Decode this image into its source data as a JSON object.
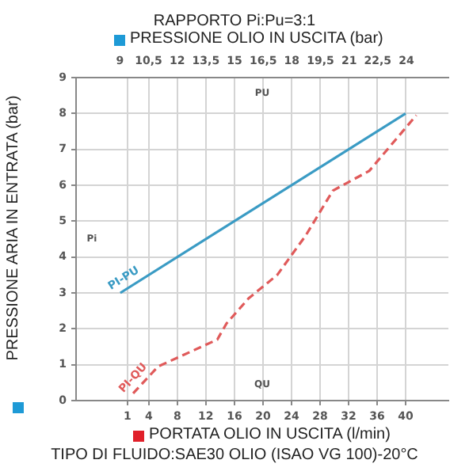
{
  "chart_data": {
    "type": "line",
    "title": "RAPPORTO Pi:Pu=3:1",
    "x2label": "PRESSIONE OLIO IN USCITA (bar)",
    "xlabel": "PORTATA OLIO IN USCITA (l/min)",
    "ylabel": "PRESSIONE ARIA IN ENTRATA (bar)",
    "annotations": [
      "PU",
      "QU",
      "Pi",
      "TIPO DI FLUIDO:SAE30 OLIO (ISAO VG 100)-20°C"
    ],
    "series": [
      {
        "name": "PI-PU",
        "color": "#3a9bc4",
        "line_style": "solid",
        "x": [
          0,
          40
        ],
        "values": [
          3,
          8
        ]
      },
      {
        "name": "PI-QU",
        "color": "#e05a5a",
        "line_style": "dashed",
        "x": [
          1.8,
          5.3,
          13.6,
          14.9,
          18,
          22,
          26,
          29.8,
          34.9,
          41.5
        ],
        "values": [
          0.2,
          0.95,
          1.7,
          2.15,
          2.85,
          3.5,
          4.6,
          5.85,
          6.4,
          7.95
        ]
      }
    ],
    "xlim": [
      -6.2,
      46
    ],
    "xticks": [
      1,
      4,
      8,
      12,
      16,
      20,
      24,
      28,
      32,
      36,
      40
    ],
    "x2lim": [
      6.7,
      26.2
    ],
    "x2ticks": [
      9,
      {
        "value": 10.5,
        "label": "10,5"
      },
      12,
      {
        "value": 13.5,
        "label": "13,5"
      },
      15,
      {
        "value": 16.5,
        "label": "16,5"
      },
      18,
      {
        "value": 19.5,
        "label": "19,5"
      },
      21,
      {
        "value": 22.5,
        "label": "22,5"
      },
      24
    ],
    "ylim": [
      0,
      9
    ],
    "yticks": [
      0,
      1,
      2,
      3,
      4,
      5,
      6,
      7,
      8,
      9
    ],
    "grid": true,
    "legend": false,
    "marker": "none"
  }
}
